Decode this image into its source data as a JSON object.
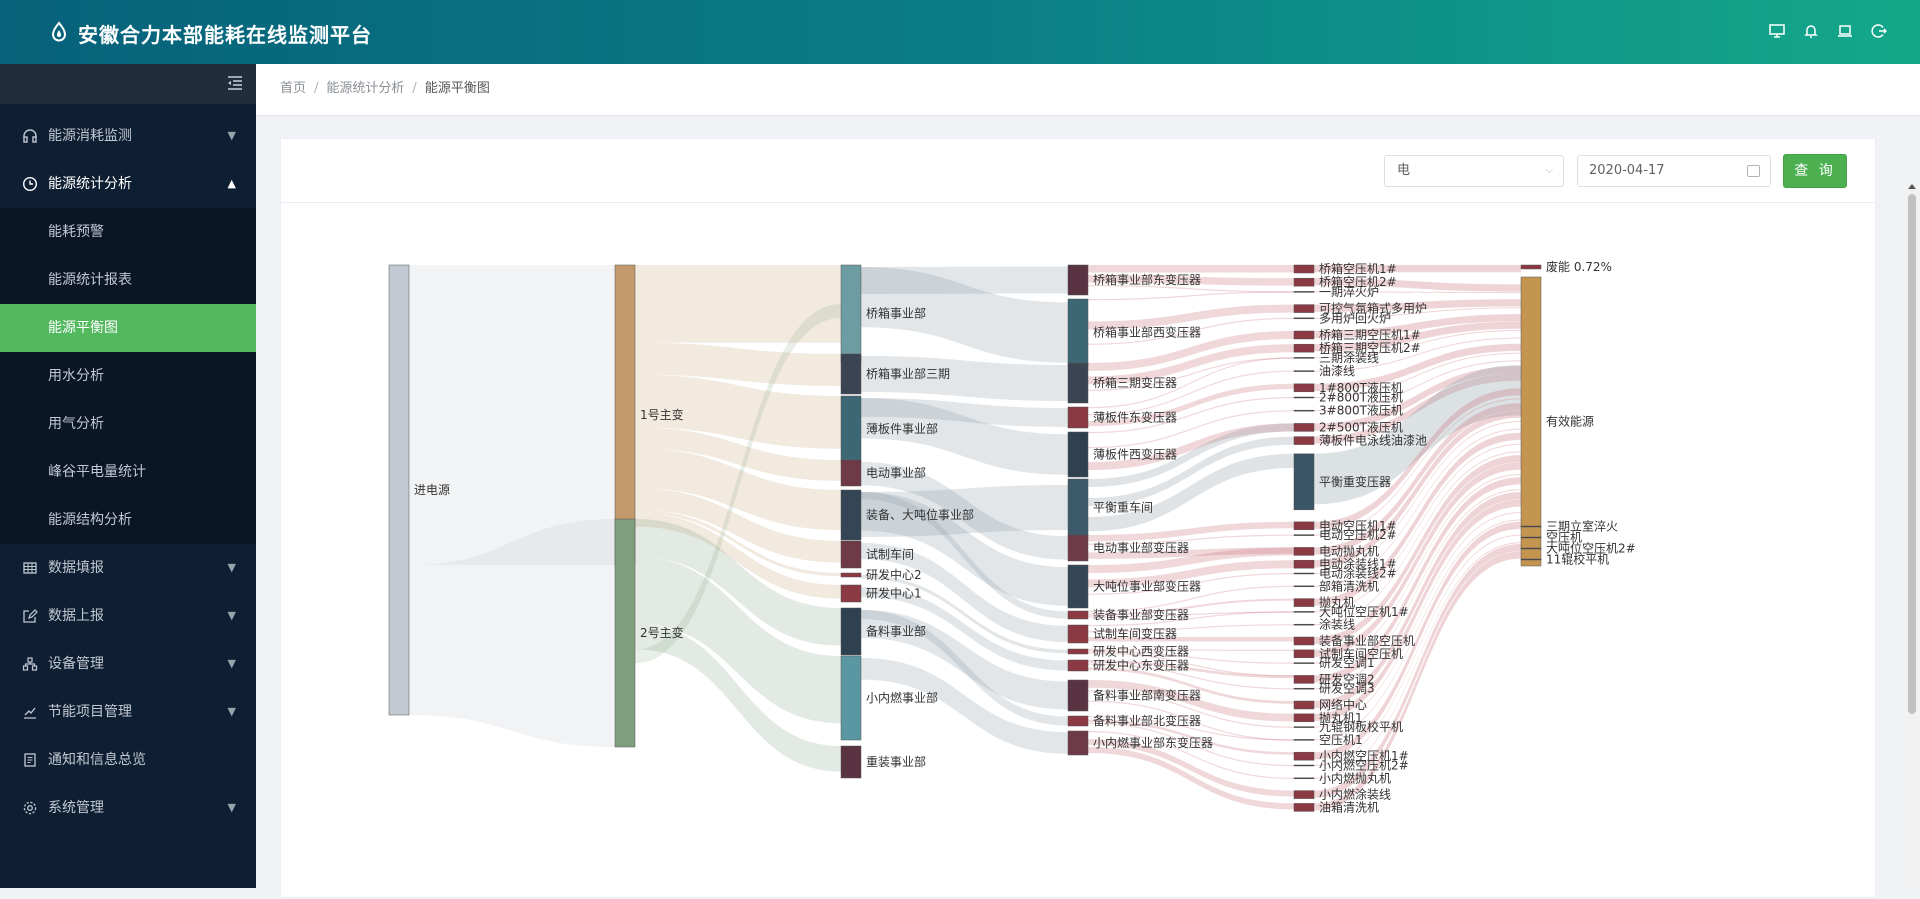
{
  "header": {
    "title": "安徽合力本部能耗在线监测平台",
    "icons": [
      "monitor-icon",
      "bell-icon",
      "laptop-icon",
      "logout-icon"
    ]
  },
  "sidebar": {
    "items": [
      {
        "label": "能源消耗监测",
        "icon": "headset-icon",
        "arrow": "⌄"
      },
      {
        "label": "能源统计分析",
        "icon": "clock-icon",
        "arrow": "⌃",
        "open": true,
        "children": [
          "能耗预警",
          "能源统计报表",
          "能源平衡图",
          "用水分析",
          "用气分析",
          "峰谷平电量统计",
          "能源结构分析"
        ]
      },
      {
        "label": "数据填报",
        "icon": "table-icon",
        "arrow": "⌄"
      },
      {
        "label": "数据上报",
        "icon": "edit-icon",
        "arrow": "⌄"
      },
      {
        "label": "设备管理",
        "icon": "device-icon",
        "arrow": "⌄"
      },
      {
        "label": "节能项目管理",
        "icon": "project-icon",
        "arrow": "⌄"
      },
      {
        "label": "通知和信息总览",
        "icon": "notice-icon",
        "arrow": ""
      },
      {
        "label": "系统管理",
        "icon": "settings-icon",
        "arrow": "⌄"
      }
    ],
    "active_child": "能源平衡图"
  },
  "breadcrumb": {
    "items": [
      "首页",
      "能源统计分析",
      "能源平衡图"
    ],
    "separator": "/"
  },
  "toolbar": {
    "energy_type": "电",
    "date": "2020-04-17",
    "query_label": "查 询"
  },
  "chart_data": {
    "type": "sankey",
    "columns": [
      [
        {
          "name": "进电源",
          "color": "#c2c9d2"
        }
      ],
      [
        {
          "name": "1号主变",
          "color": "#c4996c"
        },
        {
          "name": "2号主变",
          "color": "#7f9e7e"
        }
      ],
      [
        {
          "name": "桥箱事业部",
          "color": "#6d9da2"
        },
        {
          "name": "桥箱事业部三期",
          "color": "#3a4453"
        },
        {
          "name": "薄板件事业部",
          "color": "#3c6876"
        },
        {
          "name": "电动事业部",
          "color": "#6e3a47"
        },
        {
          "name": "装备、大吨位事业部",
          "color": "#344556"
        },
        {
          "name": "试制车间",
          "color": "#6e3a47"
        },
        {
          "name": "研发中心2",
          "color": "#8b3a44"
        },
        {
          "name": "研发中心1",
          "color": "#8b3a44"
        },
        {
          "name": "备料事业部",
          "color": "#2f4151"
        },
        {
          "name": "小内燃事业部",
          "color": "#5a97a2"
        },
        {
          "name": "重装事业部",
          "color": "#5a3342"
        }
      ],
      [
        {
          "name": "桥箱事业部东变压器",
          "color": "#5a3342"
        },
        {
          "name": "桥箱事业部西变压器",
          "color": "#3c6876"
        },
        {
          "name": "桥箱三期变压器",
          "color": "#3a4453"
        },
        {
          "name": "薄板件东变压器",
          "color": "#8b3a44"
        },
        {
          "name": "薄板件西变压器",
          "color": "#2f4151"
        },
        {
          "name": "平衡重车间",
          "color": "#3c5a6a"
        },
        {
          "name": "电动事业部变压器",
          "color": "#6e3a47"
        },
        {
          "name": "大吨位事业部变压器",
          "color": "#344556"
        },
        {
          "name": "装备事业部变压器",
          "color": "#8b3a44"
        },
        {
          "name": "试制车间变压器",
          "color": "#8b3a44"
        },
        {
          "name": "研发中心西变压器",
          "color": "#8b3a44"
        },
        {
          "name": "研发中心东变压器",
          "color": "#8b3a44"
        },
        {
          "name": "备料事业部南变压器",
          "color": "#5a3342"
        },
        {
          "name": "备料事业部北变压器",
          "color": "#8b3a44"
        },
        {
          "name": "小内燃事业部东变压器",
          "color": "#6e3a47"
        }
      ],
      [
        {
          "name": "桥箱空压机1#"
        },
        {
          "name": "桥箱空压机2#"
        },
        {
          "name": "一期淬火炉"
        },
        {
          "name": "可控气氛箱式多用炉"
        },
        {
          "name": "多用炉回火炉"
        },
        {
          "name": "桥箱三期空压机1#"
        },
        {
          "name": "桥箱三期空压机2#"
        },
        {
          "name": "三期涂装线"
        },
        {
          "name": "油漆线"
        },
        {
          "name": "1#800T液压机"
        },
        {
          "name": "2#800T液压机"
        },
        {
          "name": "3#800T液压机"
        },
        {
          "name": "2#500T液压机"
        },
        {
          "name": "薄板件电泳线油漆池"
        },
        {
          "name": "平衡重变压器",
          "big": true
        },
        {
          "name": "电动空压机1#"
        },
        {
          "name": "电动空压机2#"
        },
        {
          "name": "电动抛丸机"
        },
        {
          "name": "电动涂装线1#"
        },
        {
          "name": "电动涂装线2#"
        },
        {
          "name": "部箱清洗机"
        },
        {
          "name": "抛丸机"
        },
        {
          "name": "大吨位空压机1#"
        },
        {
          "name": "涂装线"
        },
        {
          "name": "装备事业部空压机"
        },
        {
          "name": "试制车间空压机"
        },
        {
          "name": "研发空调1"
        },
        {
          "name": "研发空调2"
        },
        {
          "name": "研发空调3"
        },
        {
          "name": "网络中心"
        },
        {
          "name": "抛丸机1"
        },
        {
          "name": "九辊钢板校平机"
        },
        {
          "name": "空压机1"
        },
        {
          "name": "小内燃空压机1#"
        },
        {
          "name": "小内燃空压机2#"
        },
        {
          "name": "小内燃抛丸机"
        },
        {
          "name": "小内燃涂装线"
        },
        {
          "name": "油箱清洗机"
        }
      ],
      [
        {
          "name": "废能 0.72%",
          "color": "#8b3a44"
        },
        {
          "name": "有效能源",
          "color": "#c4954f"
        },
        {
          "name": "三期立室淬火"
        },
        {
          "name": "空压机"
        },
        {
          "name": "大吨位空压机2#"
        },
        {
          "name": "11辊校平机"
        }
      ]
    ]
  }
}
